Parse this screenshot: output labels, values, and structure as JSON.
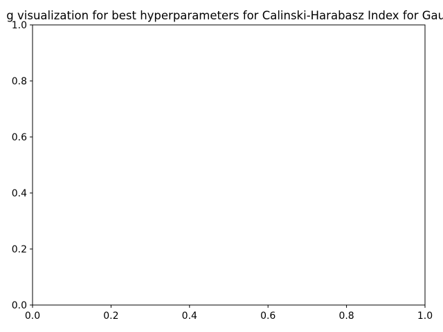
{
  "chart_data": {
    "type": "scatter",
    "title": "g visualization for best hyperparameters for Calinski-Harabasz Index for Gaus",
    "xlabel": "",
    "ylabel": "",
    "xlim": [
      0.0,
      1.0
    ],
    "ylim": [
      0.0,
      1.0
    ],
    "xticks": [
      "0.0",
      "0.2",
      "0.4",
      "0.6",
      "0.8",
      "1.0"
    ],
    "yticks": [
      "0.0",
      "0.2",
      "0.4",
      "0.6",
      "0.8",
      "1.0"
    ],
    "series": [],
    "grid": false,
    "legend": "none"
  },
  "colors": {
    "background": "#ffffff",
    "axes": "#000000",
    "text": "#000000"
  }
}
